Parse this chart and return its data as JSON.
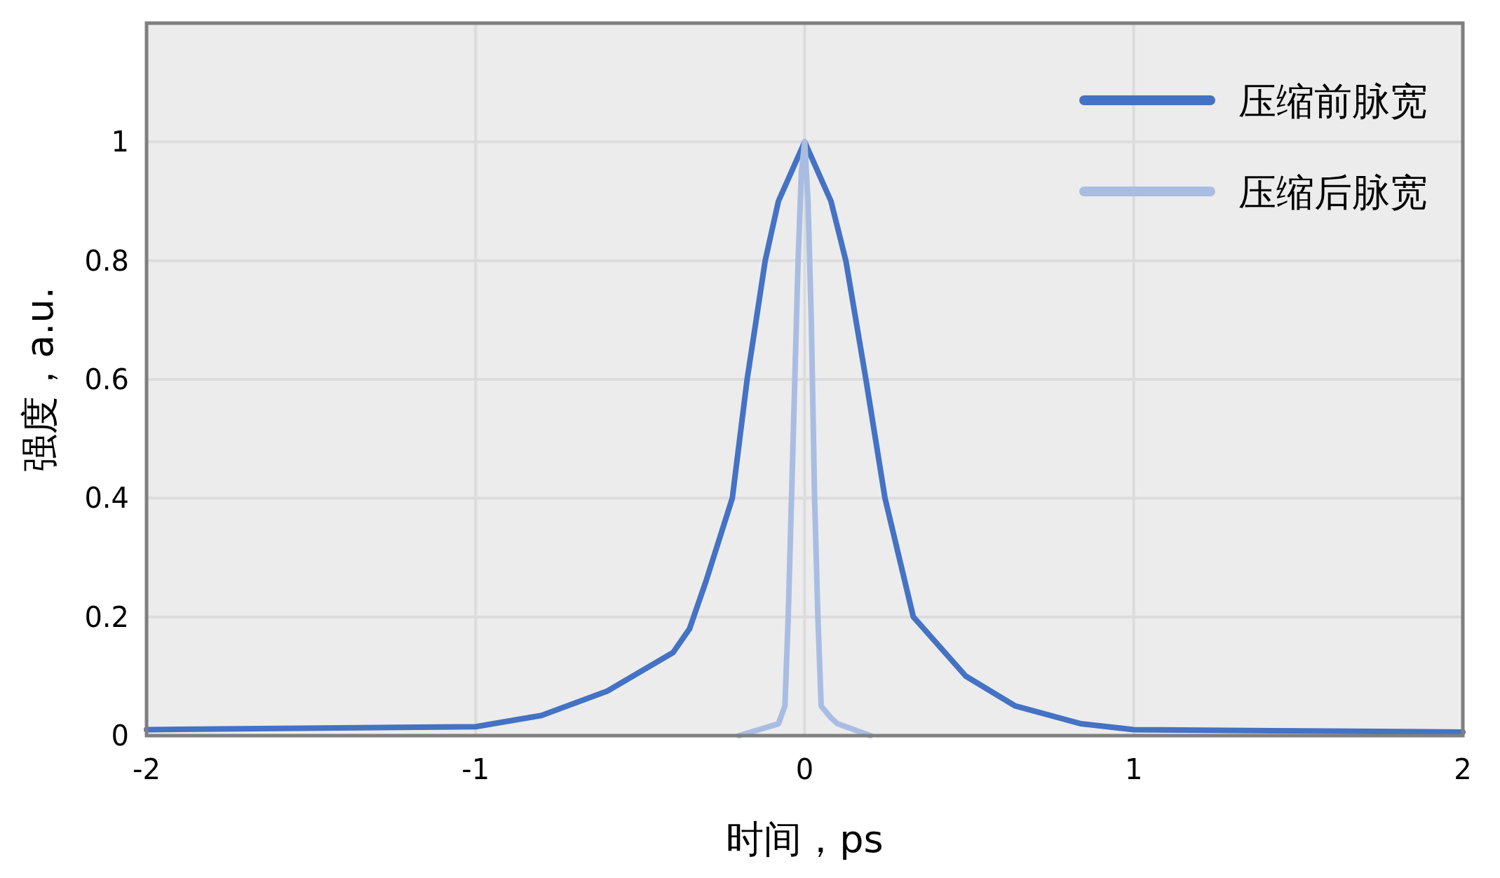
{
  "chart_data": {
    "type": "line",
    "xlabel": "时间，ps",
    "ylabel": "强度，a.u.",
    "xlim": [
      -2,
      2
    ],
    "xticks": [
      -2,
      -1,
      0,
      1,
      2
    ],
    "ylim": [
      0,
      1.2
    ],
    "yticks": [
      0,
      0.2,
      0.4,
      0.6,
      0.8,
      1
    ],
    "grid": true,
    "legend": "top right",
    "series": [
      {
        "name": "压缩前脉宽",
        "color": "#4472c4",
        "x": [
          -2,
          -1,
          -0.8,
          -0.6,
          -0.4,
          -0.35,
          -0.3,
          -0.22,
          -0.175,
          -0.12,
          -0.08,
          0,
          0.08,
          0.125,
          0.186,
          0.244,
          0.33,
          0.49,
          0.64,
          0.84,
          1,
          2
        ],
        "values": [
          0.01,
          0.015,
          0.034,
          0.075,
          0.14,
          0.18,
          0.26,
          0.4,
          0.6,
          0.8,
          0.9,
          1,
          0.9,
          0.8,
          0.6,
          0.4,
          0.2,
          0.1,
          0.05,
          0.02,
          0.01,
          0.006
        ]
      },
      {
        "name": "压缩后脉宽",
        "color": "#a9bde3",
        "x": [
          -0.2,
          -0.08,
          -0.06,
          -0.05,
          -0.04,
          -0.03,
          -0.02,
          -0.01,
          0,
          0.01,
          0.02,
          0.03,
          0.04,
          0.05,
          0.08,
          0.1,
          0.2
        ],
        "values": [
          0,
          0.02,
          0.05,
          0.2,
          0.4,
          0.6,
          0.8,
          0.95,
          1,
          0.9,
          0.7,
          0.4,
          0.2,
          0.05,
          0.03,
          0.02,
          0
        ]
      }
    ]
  }
}
